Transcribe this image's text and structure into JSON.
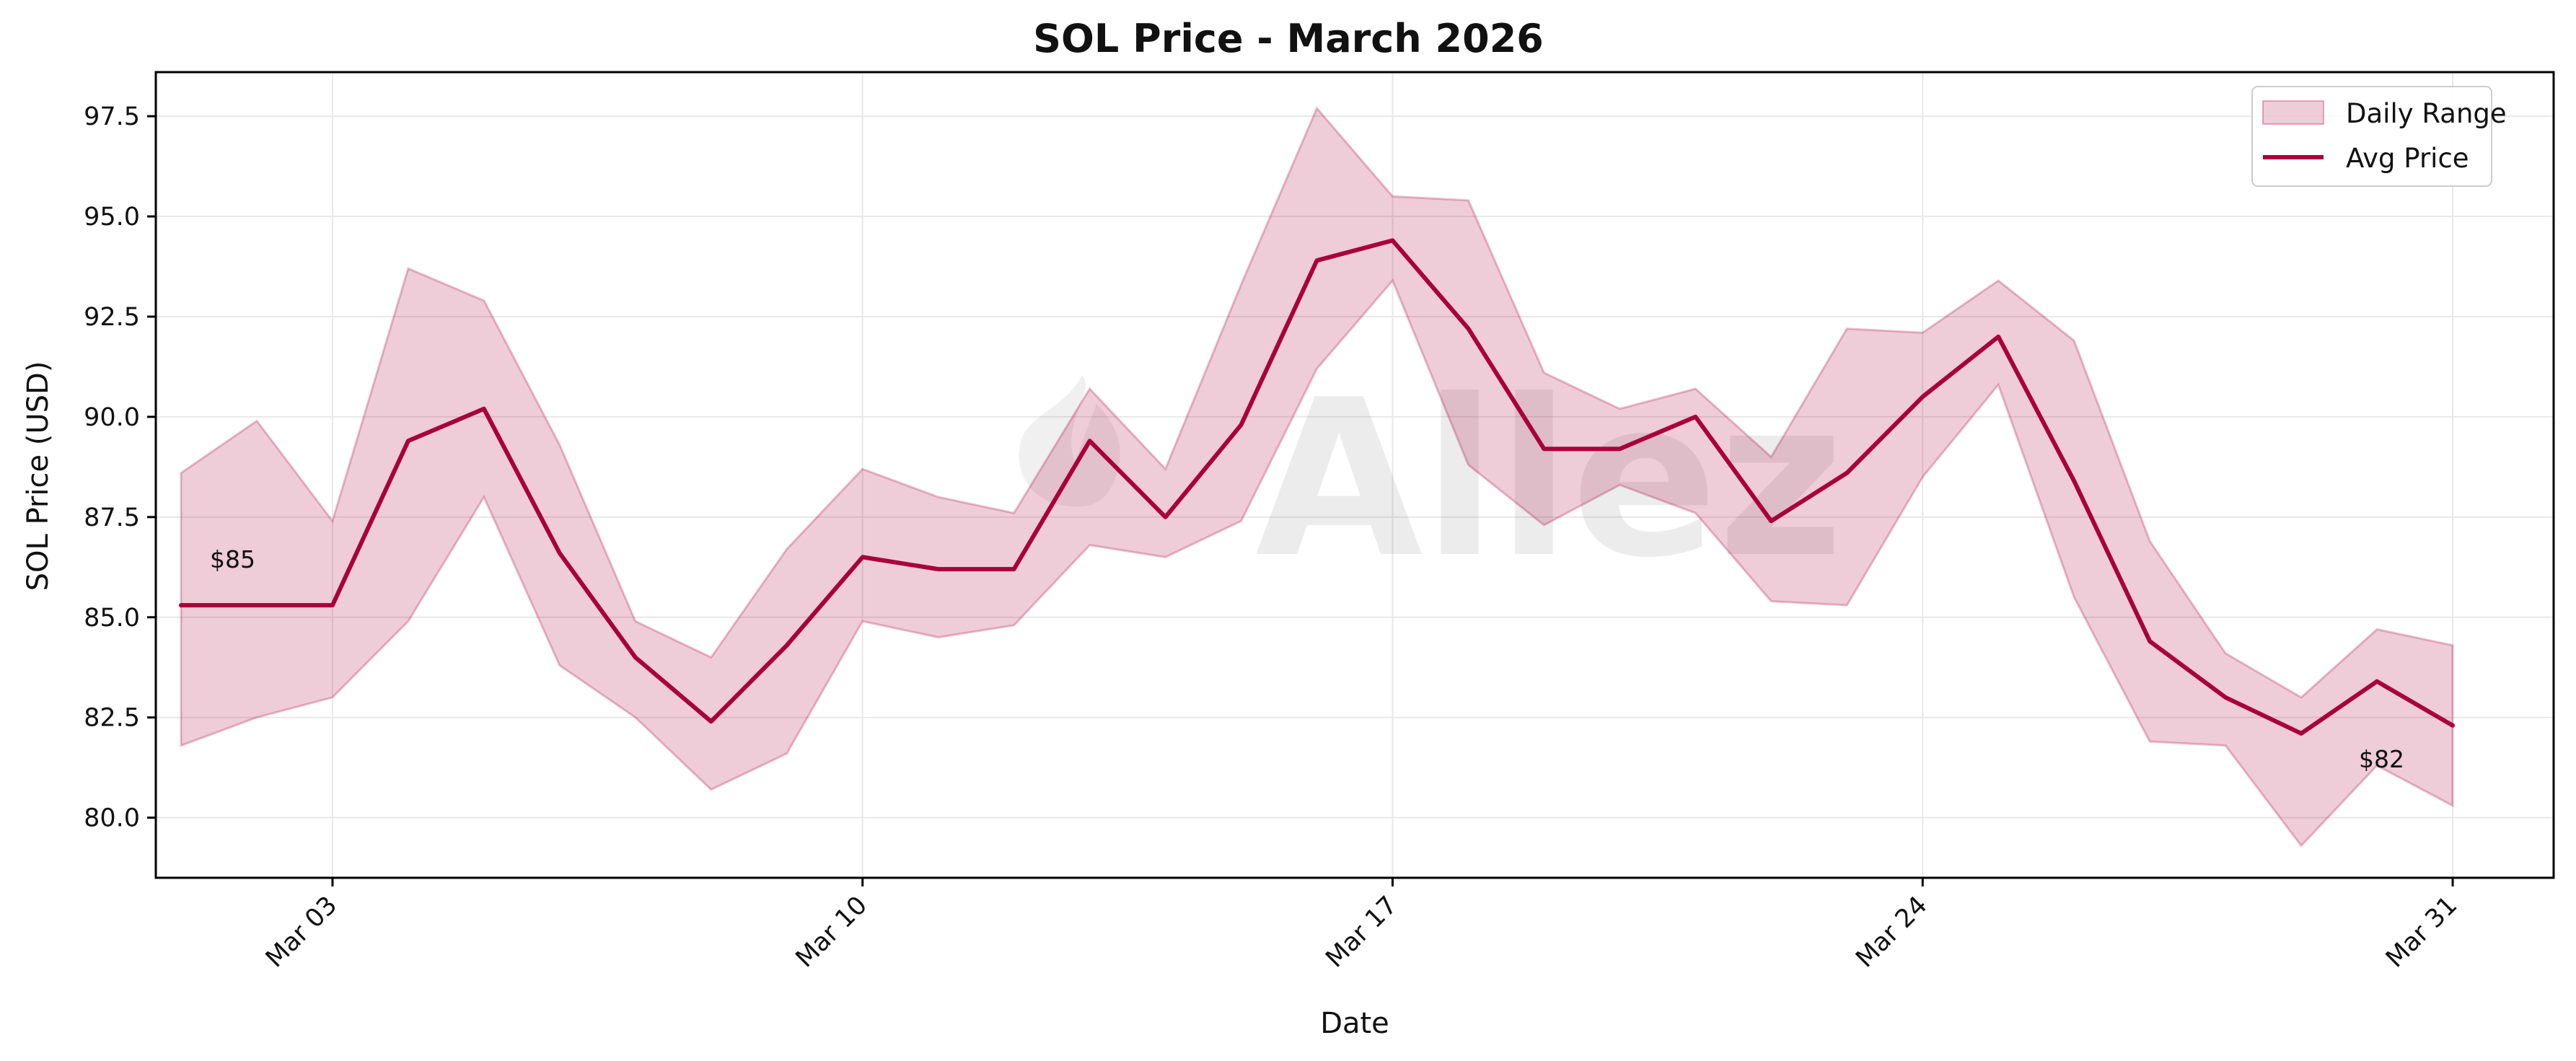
{
  "chart_data": {
    "type": "line",
    "title": "SOL Price - March 2026",
    "xlabel": "Date",
    "ylabel": "SOL Price (USD)",
    "x_start": "2026-03-01",
    "x": [
      "2026-03-01",
      "2026-03-02",
      "2026-03-03",
      "2026-03-04",
      "2026-03-05",
      "2026-03-06",
      "2026-03-07",
      "2026-03-08",
      "2026-03-09",
      "2026-03-10",
      "2026-03-11",
      "2026-03-12",
      "2026-03-13",
      "2026-03-14",
      "2026-03-15",
      "2026-03-16",
      "2026-03-17",
      "2026-03-18",
      "2026-03-19",
      "2026-03-20",
      "2026-03-21",
      "2026-03-22",
      "2026-03-23",
      "2026-03-24",
      "2026-03-25",
      "2026-03-26",
      "2026-03-27",
      "2026-03-28",
      "2026-03-29",
      "2026-03-30",
      "2026-03-31"
    ],
    "xlim": [
      "2026-02-28T16:00",
      "2026-04-01T08:00"
    ],
    "ylim": [
      78.5,
      98.6
    ],
    "x_ticks": [
      {
        "date": "2026-03-03",
        "label": "Mar 03"
      },
      {
        "date": "2026-03-10",
        "label": "Mar 10"
      },
      {
        "date": "2026-03-17",
        "label": "Mar 17"
      },
      {
        "date": "2026-03-24",
        "label": "Mar 24"
      },
      {
        "date": "2026-03-31",
        "label": "Mar 31"
      }
    ],
    "y_ticks": [
      80.0,
      82.5,
      85.0,
      87.5,
      90.0,
      92.5,
      95.0,
      97.5
    ],
    "y_tick_labels": [
      "80.0",
      "82.5",
      "85.0",
      "87.5",
      "90.0",
      "92.5",
      "95.0",
      "97.5"
    ],
    "grid": true,
    "legend": {
      "placement": "top-right",
      "entries": [
        "Daily Range",
        "Avg Price"
      ]
    },
    "series": [
      {
        "name": "Daily Range",
        "kind": "band",
        "color": "#a8003a",
        "low": [
          81.8,
          82.5,
          83.0,
          84.9,
          88.0,
          83.8,
          82.5,
          80.7,
          81.6,
          84.9,
          84.5,
          84.8,
          86.8,
          86.5,
          87.4,
          91.2,
          93.4,
          88.8,
          87.3,
          88.3,
          87.6,
          85.4,
          85.3,
          88.5,
          90.8,
          85.5,
          81.9,
          81.8,
          79.3,
          81.3,
          80.3
        ],
        "high": [
          88.6,
          89.9,
          87.4,
          93.7,
          92.9,
          89.3,
          84.9,
          84.0,
          86.7,
          88.7,
          88.0,
          87.6,
          90.7,
          88.7,
          93.3,
          97.7,
          95.5,
          95.4,
          91.1,
          90.2,
          90.7,
          89.0,
          92.2,
          92.1,
          93.4,
          91.9,
          86.9,
          84.1,
          83.0,
          84.7,
          84.3
        ]
      },
      {
        "name": "Avg Price",
        "kind": "line",
        "color": "#a8003a",
        "values": [
          85.3,
          85.3,
          85.3,
          89.4,
          90.2,
          86.6,
          84.0,
          82.4,
          84.3,
          86.5,
          86.2,
          86.2,
          89.4,
          87.5,
          89.8,
          93.9,
          94.4,
          92.2,
          89.2,
          89.2,
          90.0,
          87.4,
          88.6,
          90.5,
          92.0,
          88.4,
          84.4,
          83.0,
          82.1,
          83.4,
          82.3
        ]
      }
    ],
    "annotations": [
      {
        "text": "$85",
        "x": "2026-03-01",
        "y": 85.3
      },
      {
        "text": "$82",
        "x": "2026-03-31",
        "y": 82.3
      }
    ],
    "watermark": "Allez"
  }
}
